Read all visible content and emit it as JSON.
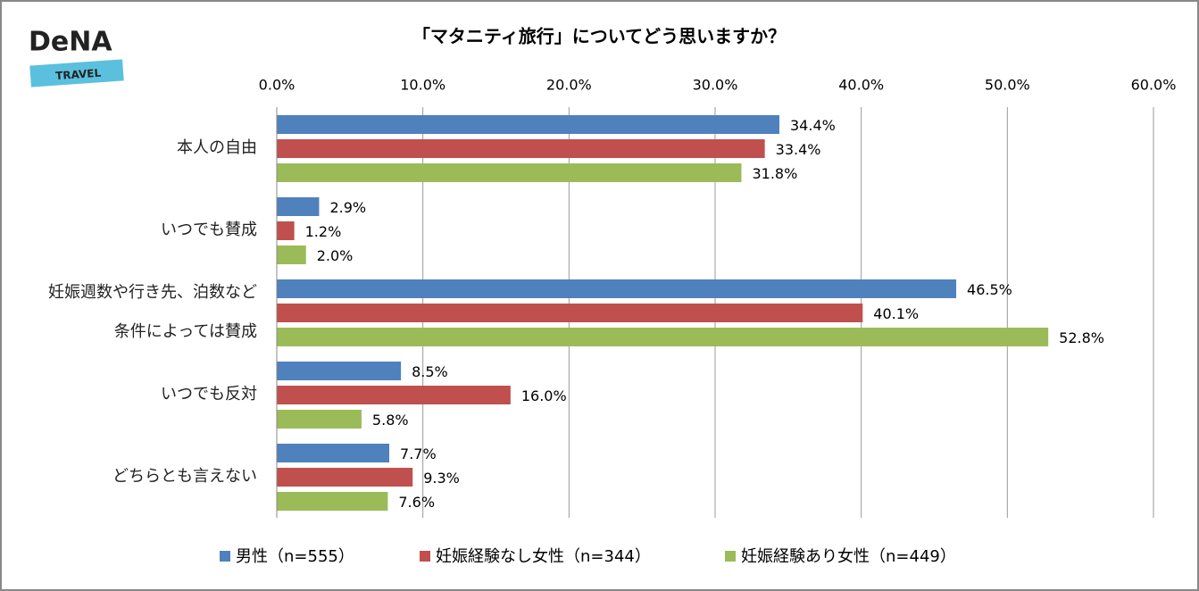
{
  "logo": {
    "name": "DeNA",
    "sub": "TRAVEL"
  },
  "chart_data": {
    "type": "bar",
    "orientation": "horizontal",
    "title": "「マタニティ旅行」についてどう思いますか？",
    "categories": [
      "本人の自由",
      "いつでも賛成",
      "妊娠週数や行き先、泊数など\n条件によっては賛成",
      "いつでも反対",
      "どちらとも言えない"
    ],
    "series": [
      {
        "name": "男性（n=555）",
        "color": "#4f81bd",
        "values": [
          34.4,
          2.9,
          46.5,
          8.5,
          7.7
        ],
        "value_labels": [
          "34.4%",
          "2.9%",
          "46.5%",
          "8.5%",
          "7.7%"
        ]
      },
      {
        "name": "妊娠経験なし女性（n=344）",
        "color": "#c0504d",
        "values": [
          33.4,
          1.2,
          40.1,
          16.0,
          9.3
        ],
        "value_labels": [
          "33.4%",
          "1.2%",
          "40.1%",
          "16.0%",
          "9.3%"
        ]
      },
      {
        "name": "妊娠経験あり女性（n=449）",
        "color": "#9bbb59",
        "values": [
          31.8,
          2.0,
          52.8,
          5.8,
          7.6
        ],
        "value_labels": [
          "31.8%",
          "2.0%",
          "52.8%",
          "5.8%",
          "7.6%"
        ]
      }
    ],
    "xlim": [
      0,
      60
    ],
    "xticks": [
      {
        "value": 0,
        "label": "0.0%"
      },
      {
        "value": 10,
        "label": "10.0%"
      },
      {
        "value": 20,
        "label": "20.0%"
      },
      {
        "value": 30,
        "label": "30.0%"
      },
      {
        "value": 40,
        "label": "40.0%"
      },
      {
        "value": 50,
        "label": "50.0%"
      },
      {
        "value": 60,
        "label": "60.0%"
      }
    ],
    "grid": true,
    "legend": "bottom"
  }
}
